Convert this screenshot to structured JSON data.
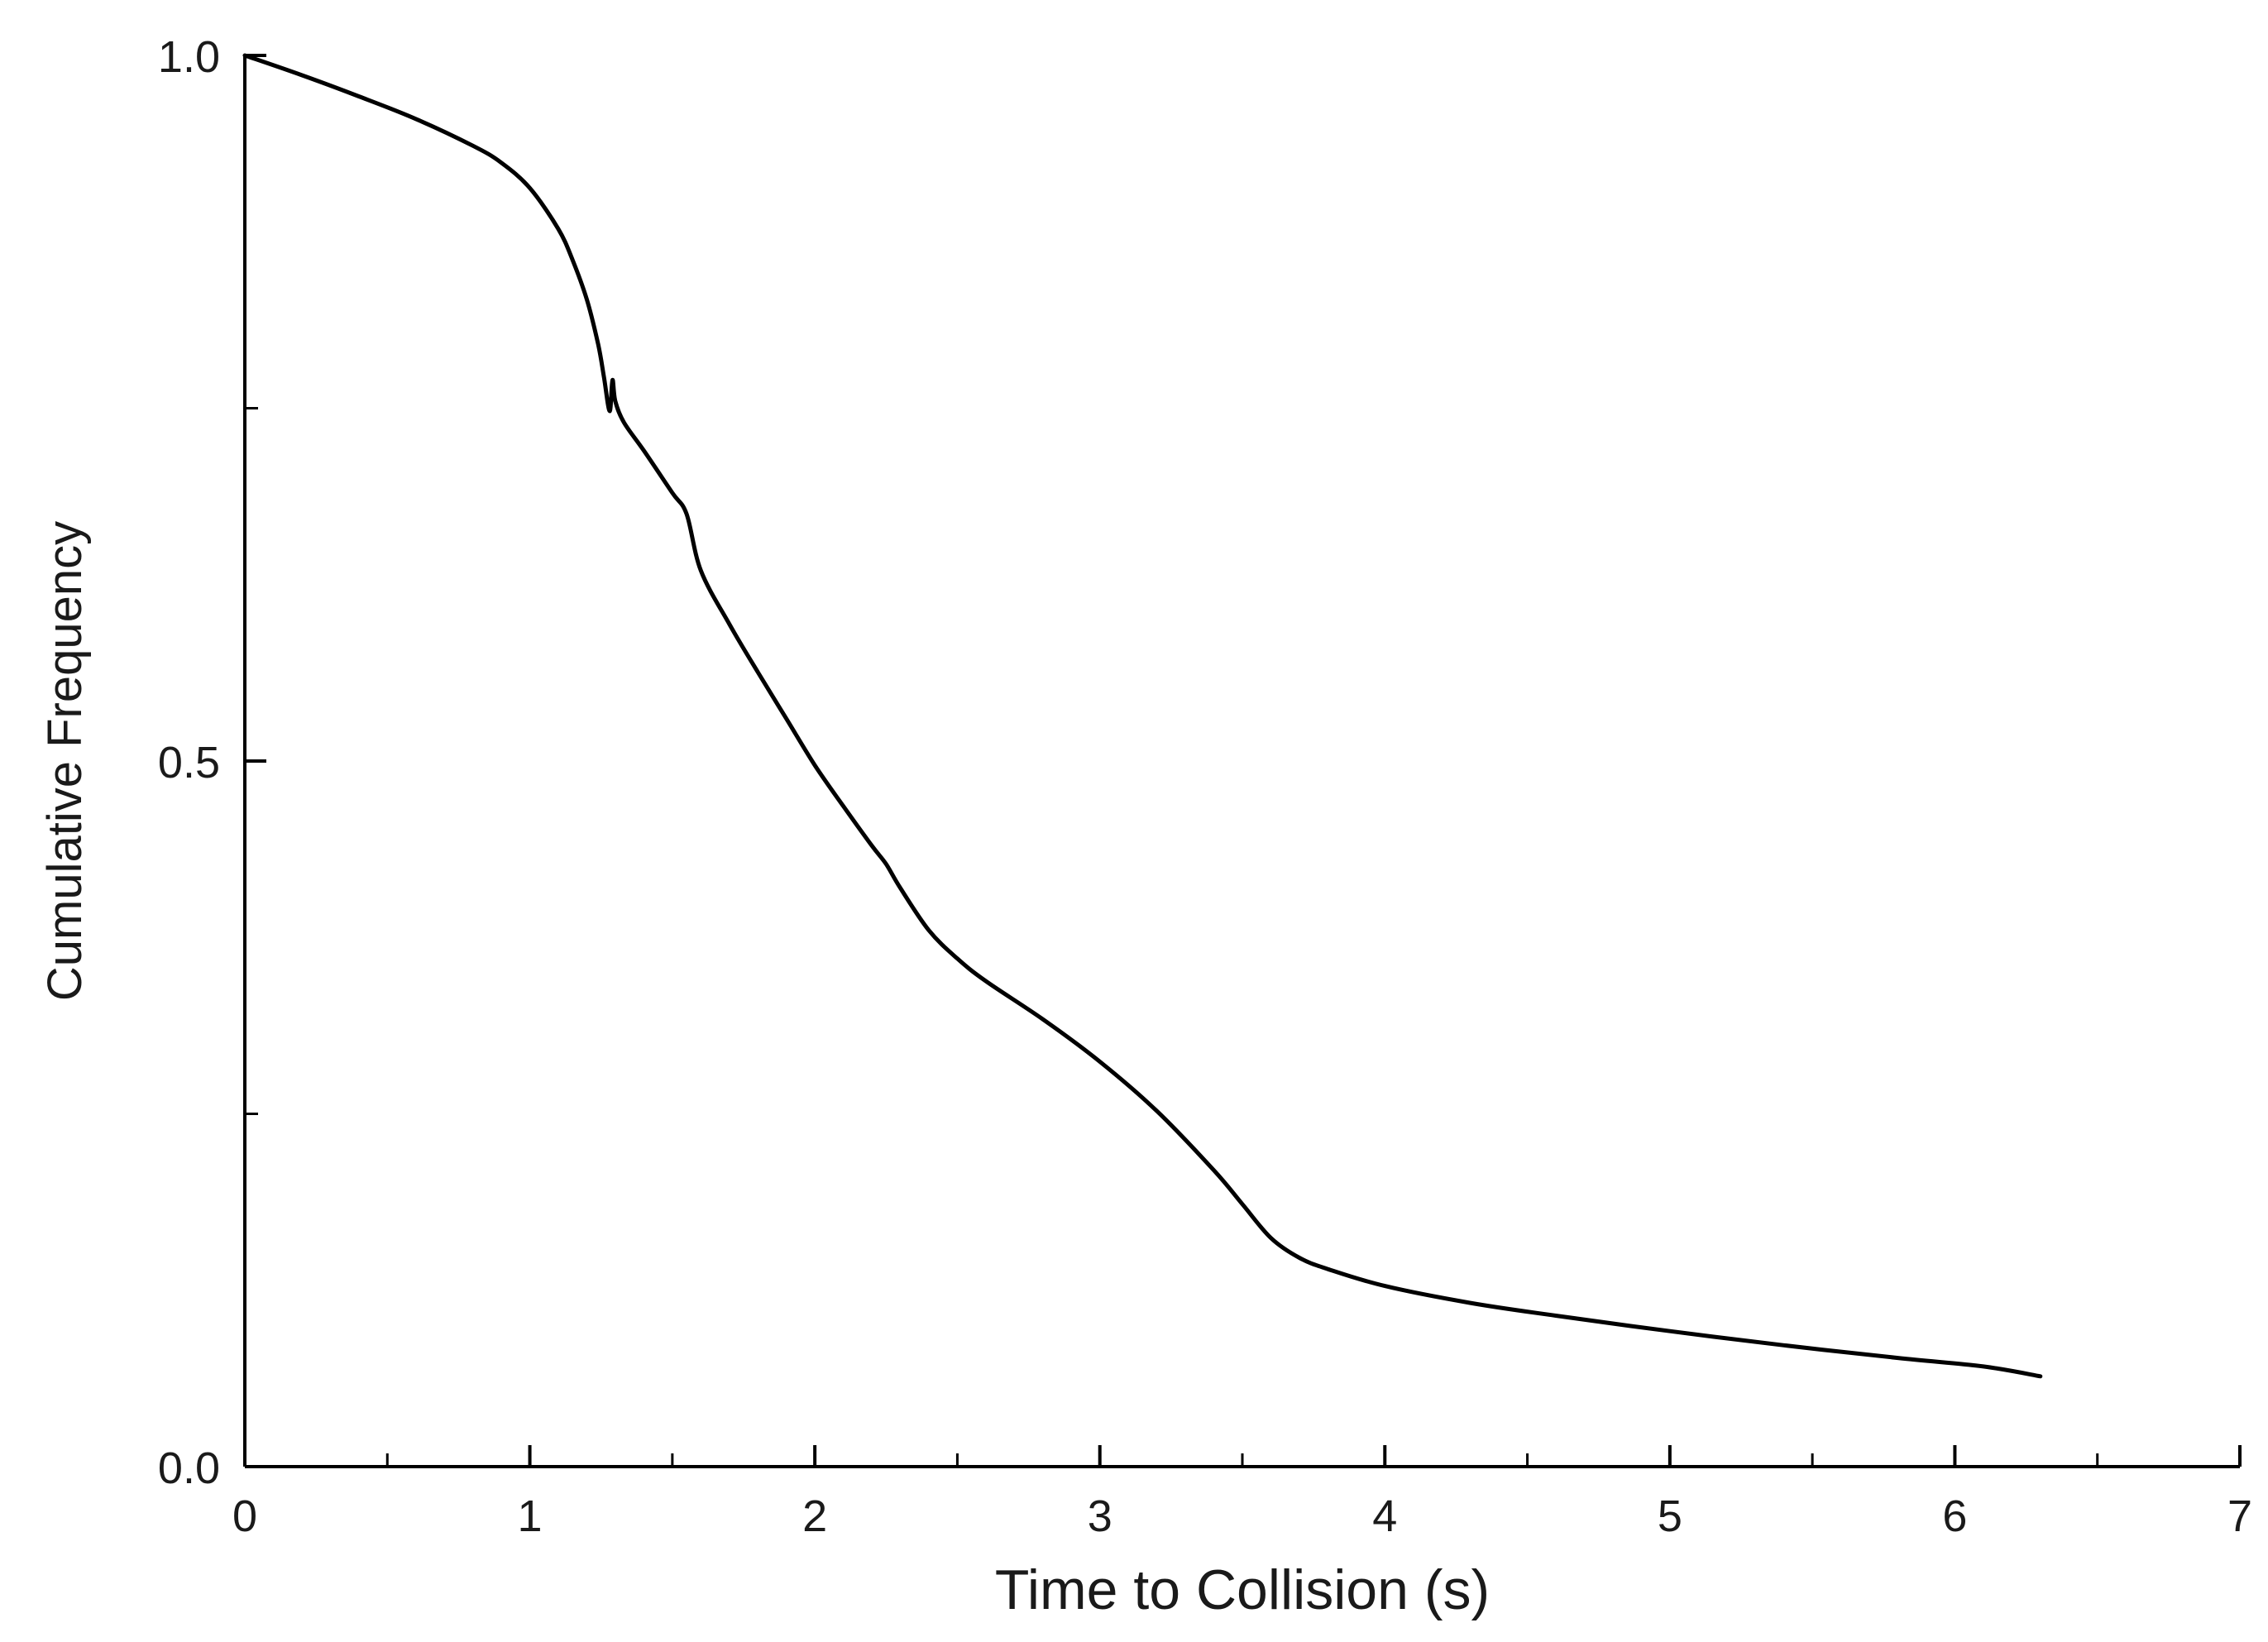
{
  "chart_data": {
    "type": "line",
    "title": "",
    "xlabel": "Time to Collision (s)",
    "ylabel": "Cumulative Frequency",
    "xlim": [
      0,
      7
    ],
    "ylim": [
      0,
      1.0
    ],
    "x_ticks": [
      0,
      1,
      2,
      3,
      4,
      5,
      6,
      7
    ],
    "x_tick_labels": [
      "0",
      "1",
      "2",
      "3",
      "4",
      "5",
      "6",
      "7"
    ],
    "y_ticks": [
      0,
      0.5,
      1.0
    ],
    "y_tick_labels": [
      "0.0",
      "0.5",
      "1.0"
    ],
    "y_minor_ticks": [
      0.25,
      0.75
    ],
    "x_minor_ticks": [
      0.5,
      1.5,
      2.5,
      3.5,
      4.5,
      5.5,
      6.5
    ],
    "grid": false,
    "legend": "none",
    "series": [
      {
        "color": "#000000",
        "x": [
          0,
          0.2,
          0.4,
          0.6,
          0.8,
          0.9,
          1.0,
          1.1,
          1.15,
          1.2,
          1.24,
          1.26,
          1.28,
          1.29,
          1.3,
          1.33,
          1.4,
          1.5,
          1.55,
          1.6,
          1.7,
          1.8,
          1.9,
          2.0,
          2.1,
          2.2,
          2.25,
          2.3,
          2.4,
          2.5,
          2.6,
          2.8,
          3.0,
          3.2,
          3.4,
          3.5,
          3.6,
          3.7,
          3.8,
          4.0,
          4.3,
          4.6,
          5.0,
          5.4,
          5.8,
          6.1,
          6.3
        ],
        "y": [
          1.0,
          0.986,
          0.971,
          0.955,
          0.936,
          0.924,
          0.906,
          0.877,
          0.855,
          0.827,
          0.795,
          0.772,
          0.748,
          0.77,
          0.755,
          0.74,
          0.72,
          0.69,
          0.675,
          0.635,
          0.597,
          0.563,
          0.53,
          0.497,
          0.468,
          0.44,
          0.427,
          0.41,
          0.38,
          0.36,
          0.344,
          0.317,
          0.287,
          0.252,
          0.21,
          0.186,
          0.162,
          0.148,
          0.14,
          0.128,
          0.116,
          0.107,
          0.096,
          0.086,
          0.077,
          0.071,
          0.064
        ]
      }
    ]
  }
}
